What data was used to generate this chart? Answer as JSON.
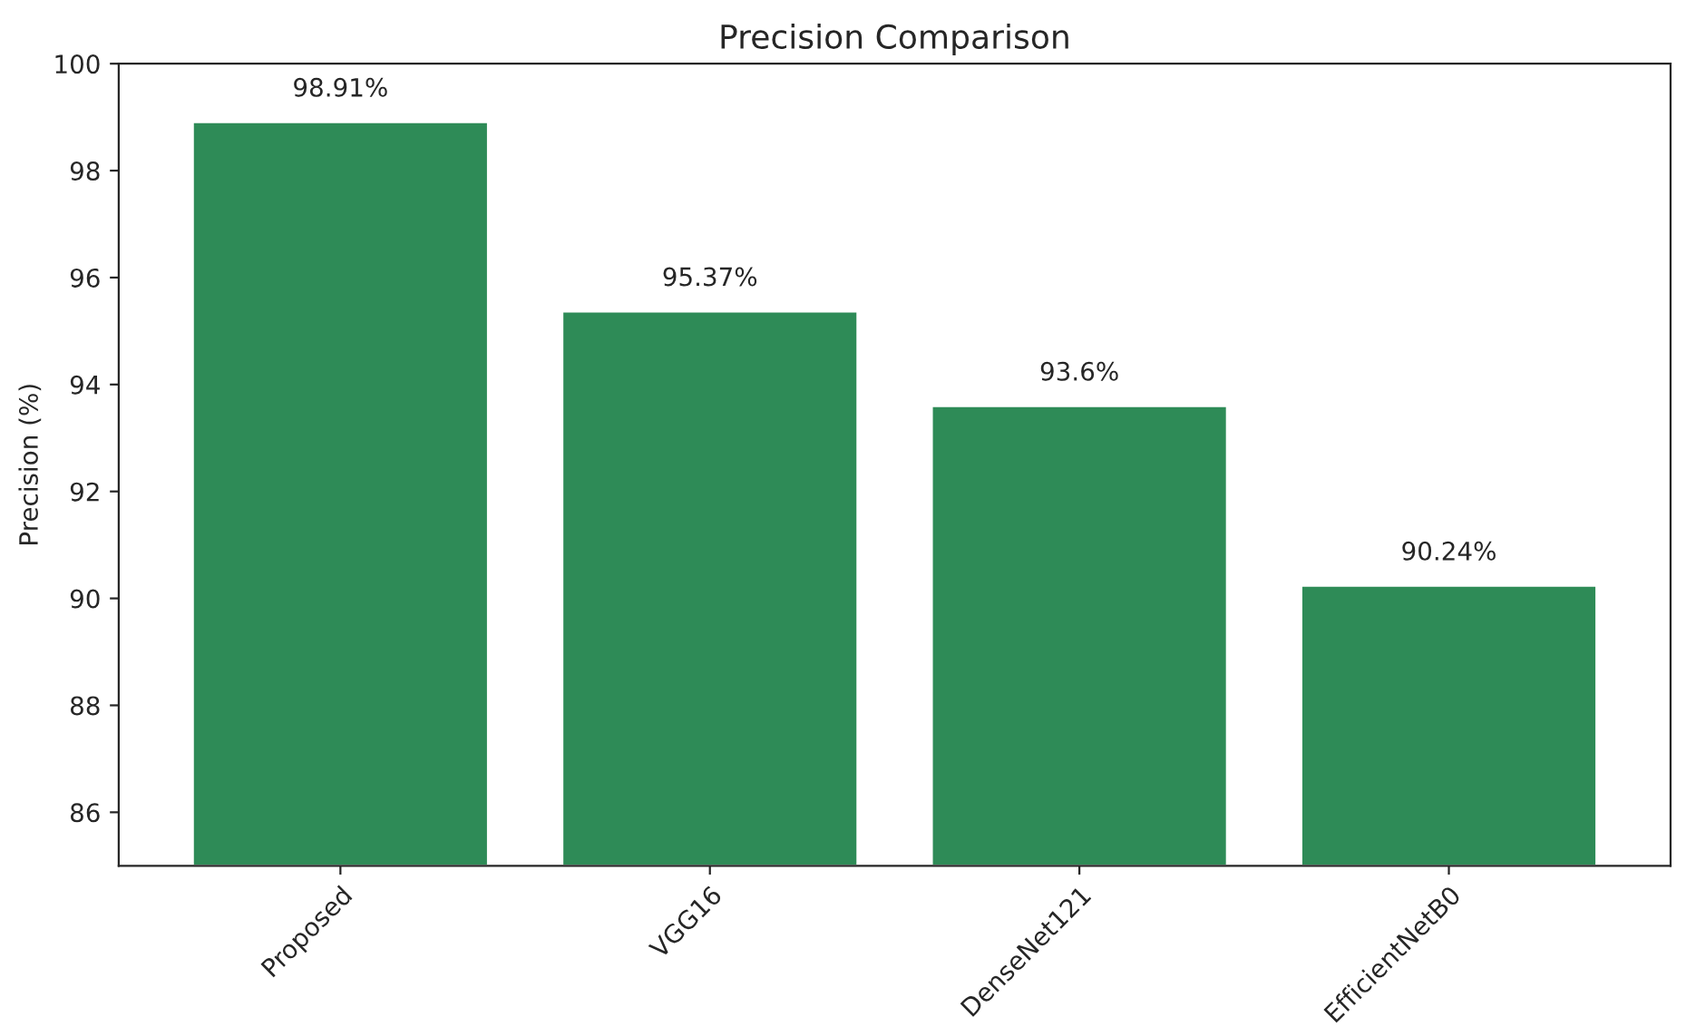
{
  "chart_data": {
    "type": "bar",
    "title": "Precision Comparison",
    "ylabel": "Precision (%)",
    "categories": [
      "Proposed",
      "VGG16",
      "DenseNet121",
      "EfficientNetB0"
    ],
    "values": [
      98.91,
      95.37,
      93.6,
      90.24
    ],
    "value_labels": [
      "98.91%",
      "95.37%",
      "93.6%",
      "90.24%"
    ],
    "color": "#2e8b57",
    "ylim": [
      85,
      100
    ],
    "yticks": [
      86,
      88,
      90,
      92,
      94,
      96,
      98,
      100
    ],
    "grid": false
  }
}
